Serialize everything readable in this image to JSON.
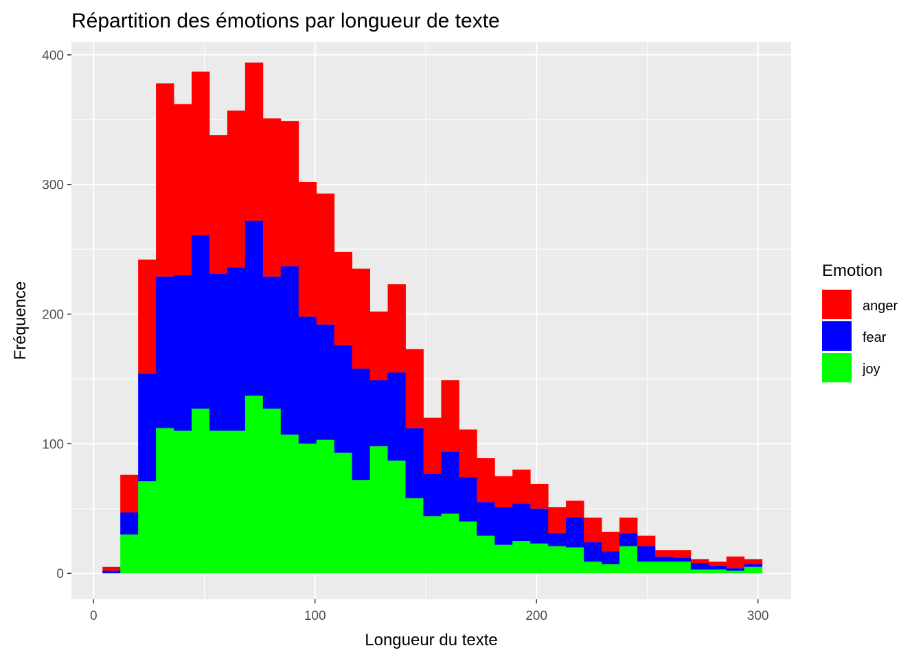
{
  "chart_data": {
    "type": "bar",
    "subtype": "stacked-histogram",
    "title": "Répartition des émotions par longueur de texte",
    "xlabel": "Longueur du texte",
    "ylabel": "Fréquence",
    "xlim": [
      -10,
      315
    ],
    "ylim": [
      -20,
      410
    ],
    "x_ticks": [
      0,
      100,
      200,
      300
    ],
    "y_ticks": [
      0,
      100,
      200,
      300,
      400
    ],
    "grid": true,
    "legend": {
      "title": "Emotion",
      "position": "right"
    },
    "bin_width": 8.05,
    "bin_centers": [
      8.05,
      16.1,
      24.15,
      32.2,
      40.25,
      48.3,
      56.35,
      64.4,
      72.45,
      80.5,
      88.55,
      96.6,
      104.65,
      112.7,
      120.75,
      128.8,
      136.85,
      144.9,
      152.95,
      161.0,
      169.05,
      177.1,
      185.15,
      193.2,
      201.25,
      209.3,
      217.35,
      225.4,
      233.45,
      241.5,
      249.55,
      257.6,
      265.65,
      273.7,
      281.75,
      289.8,
      297.85
    ],
    "series": [
      {
        "name": "joy",
        "color": "#00ff00",
        "values": [
          0,
          30,
          71,
          112,
          110,
          127,
          110,
          110,
          137,
          127,
          107,
          100,
          103,
          93,
          72,
          98,
          87,
          58,
          44,
          46,
          40,
          29,
          22,
          25,
          23,
          21,
          20,
          9,
          7,
          21,
          9,
          9,
          9,
          3,
          3,
          2,
          5
        ]
      },
      {
        "name": "fear",
        "color": "#0000ff",
        "values": [
          2,
          17,
          83,
          117,
          120,
          134,
          121,
          126,
          135,
          102,
          130,
          98,
          89,
          83,
          86,
          51,
          68,
          54,
          33,
          48,
          34,
          26,
          29,
          29,
          27,
          10,
          23,
          15,
          10,
          10,
          12,
          4,
          3,
          5,
          3,
          2,
          2
        ]
      },
      {
        "name": "anger",
        "color": "#ff0000",
        "values": [
          3,
          29,
          88,
          149,
          132,
          126,
          107,
          121,
          122,
          122,
          112,
          104,
          101,
          72,
          77,
          53,
          68,
          61,
          43,
          55,
          37,
          34,
          24,
          26,
          19,
          20,
          13,
          19,
          15,
          12,
          8,
          5,
          6,
          3,
          3,
          9,
          4
        ]
      }
    ]
  }
}
